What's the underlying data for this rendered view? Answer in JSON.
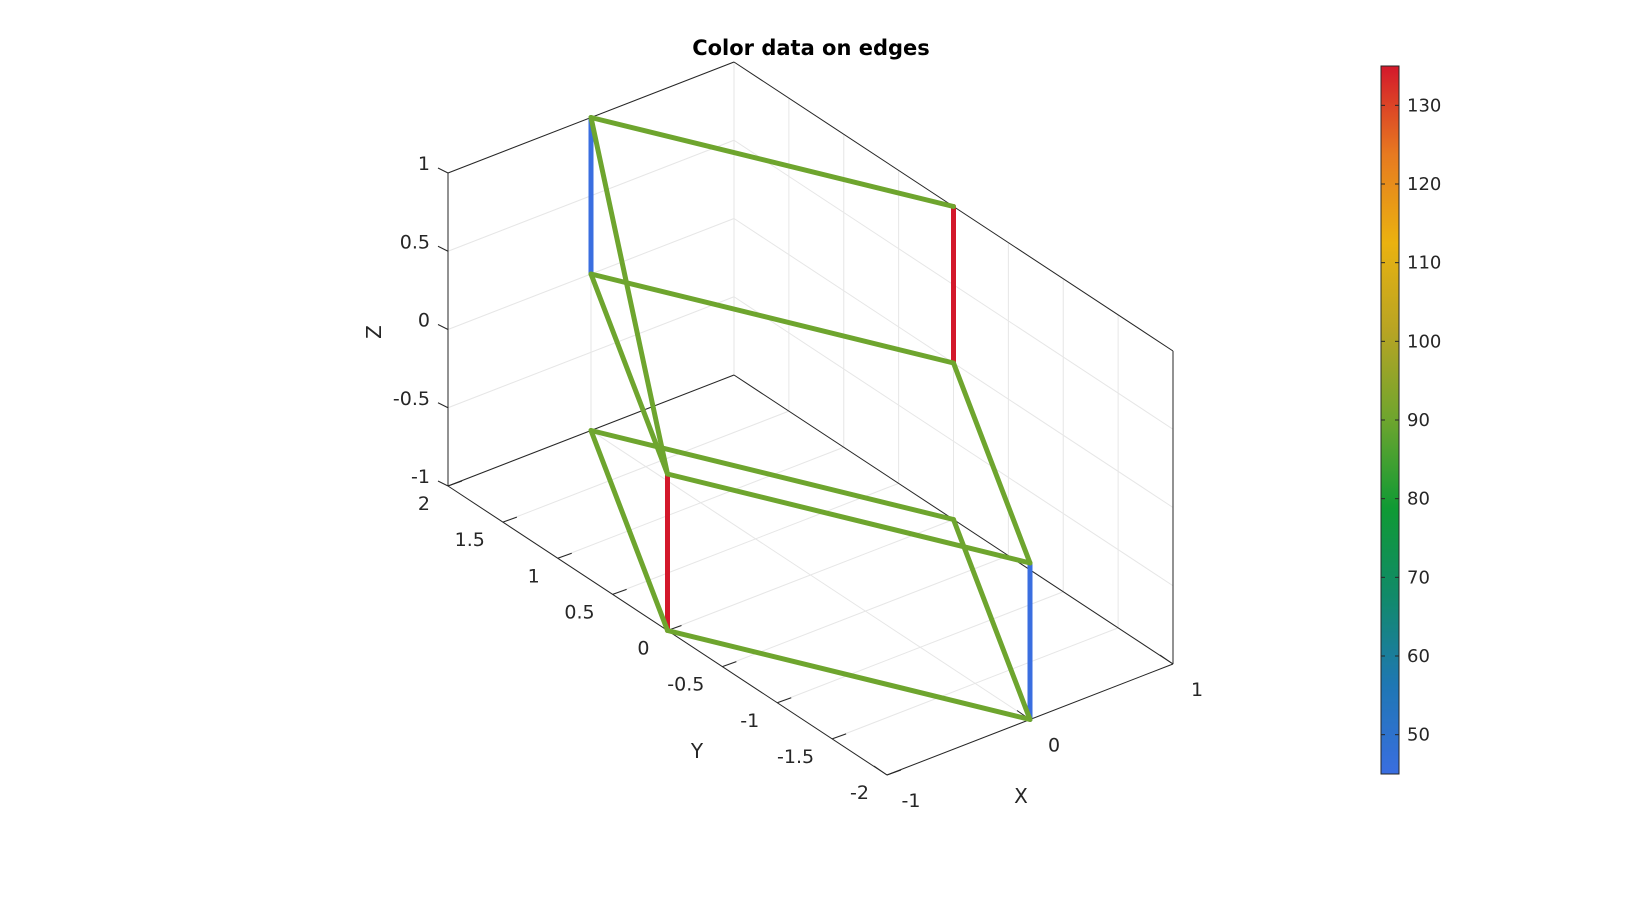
{
  "chart_data": {
    "type": "3d-line",
    "title": "Color data on edges",
    "xlabel": "X",
    "ylabel": "Y",
    "zlabel": "Z",
    "xlim": [
      -1,
      1
    ],
    "ylim": [
      -2,
      2
    ],
    "zlim": [
      -1,
      1
    ],
    "x_ticks": [
      "-1",
      "0",
      "1"
    ],
    "y_ticks": [
      "-2",
      "-1.5",
      "-1",
      "-0.5",
      "0",
      "0.5",
      "1",
      "1.5",
      "2"
    ],
    "z_ticks": [
      "-1",
      "-0.5",
      "0",
      "0.5",
      "1"
    ],
    "grid": true,
    "colormap": "turbo-like",
    "colorbar": {
      "location": "right",
      "limits": [
        45,
        135
      ],
      "ticks": [
        "50",
        "60",
        "70",
        "80",
        "90",
        "100",
        "110",
        "120",
        "130"
      ],
      "colors": [
        "#3a6ee0",
        "#1f77b4",
        "#118a6a",
        "#0f9a34",
        "#6ea52e",
        "#b7a424",
        "#eab210",
        "#e77a20",
        "#d3182b"
      ]
    },
    "edges": [
      {
        "from": [
          0,
          -2,
          -1
        ],
        "to": [
          0,
          -2,
          0
        ],
        "value": 45
      },
      {
        "from": [
          0,
          2,
          0
        ],
        "to": [
          0,
          2,
          1
        ],
        "value": 45
      },
      {
        "from": [
          -1,
          0,
          -1
        ],
        "to": [
          -1,
          0,
          0
        ],
        "value": 135
      },
      {
        "from": [
          1,
          0,
          0
        ],
        "to": [
          1,
          0,
          1
        ],
        "value": 135
      },
      {
        "from": [
          -1,
          0,
          -1
        ],
        "to": [
          0,
          -2,
          -1
        ],
        "value": 90
      },
      {
        "from": [
          0,
          -2,
          -1
        ],
        "to": [
          1,
          0,
          -1
        ],
        "value": 90
      },
      {
        "from": [
          -1,
          0,
          -1
        ],
        "to": [
          0,
          2,
          -1
        ],
        "value": 90
      },
      {
        "from": [
          0,
          2,
          -1
        ],
        "to": [
          1,
          0,
          -1
        ],
        "value": 90
      },
      {
        "from": [
          -1,
          0,
          0
        ],
        "to": [
          0,
          -2,
          0
        ],
        "value": 90
      },
      {
        "from": [
          0,
          -2,
          0
        ],
        "to": [
          1,
          0,
          0
        ],
        "value": 90
      },
      {
        "from": [
          -1,
          0,
          0
        ],
        "to": [
          0,
          2,
          0
        ],
        "value": 90
      },
      {
        "from": [
          0,
          2,
          0
        ],
        "to": [
          1,
          0,
          0
        ],
        "value": 90
      },
      {
        "from": [
          -1,
          0,
          0
        ],
        "to": [
          0,
          2,
          1
        ],
        "value": 90
      },
      {
        "from": [
          0,
          2,
          1
        ],
        "to": [
          1,
          0,
          1
        ],
        "value": 90
      }
    ]
  }
}
